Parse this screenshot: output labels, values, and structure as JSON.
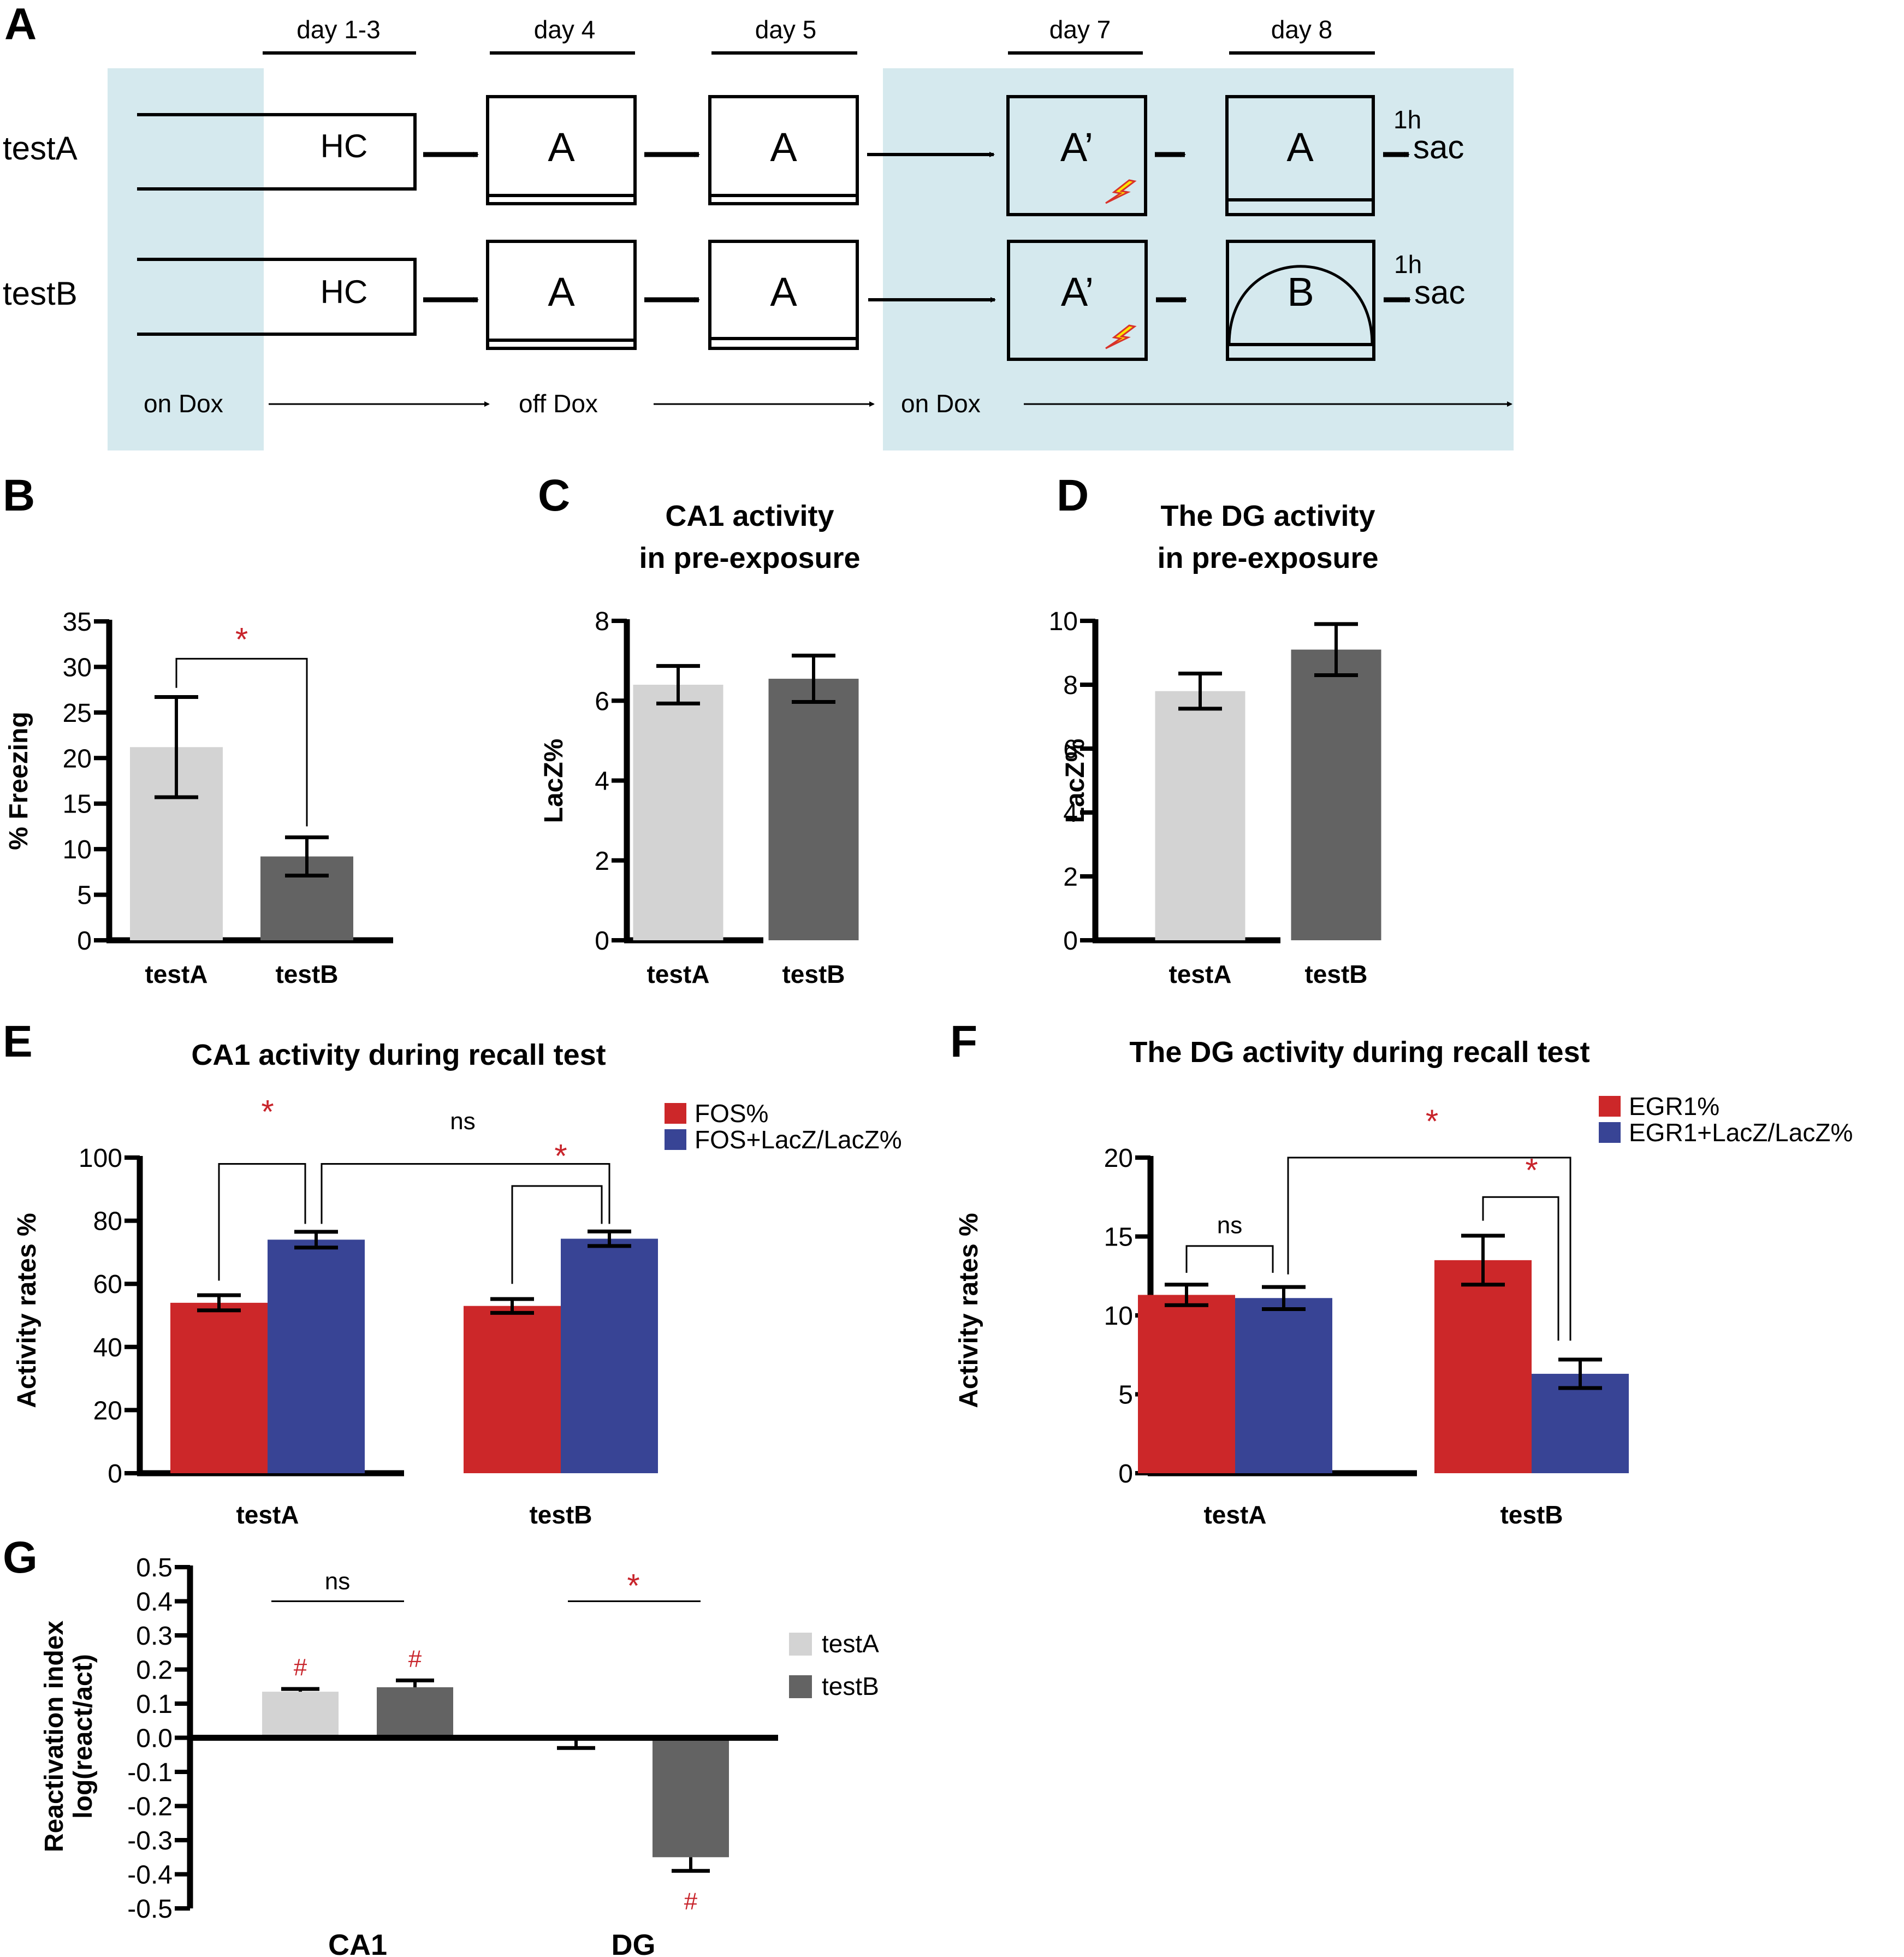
{
  "colors": {
    "dox_bg": "#d5e9ee",
    "testA_gray": "#d3d3d3",
    "testB_gray": "#636363",
    "red": "#cc2729",
    "blue": "#384495",
    "sig_red": "#c8242b",
    "shock_yellow": "#ffe600",
    "shock_outline": "#d8322a"
  },
  "panel_a": {
    "letter": "A",
    "days": [
      "day 1-3",
      "day 4",
      "day 5",
      "day 7",
      "day 8"
    ],
    "rows": [
      {
        "label": "testA",
        "steps": [
          "HC",
          "A",
          "A",
          "A’",
          "A"
        ],
        "post_label": "1h",
        "end_label": "sac"
      },
      {
        "label": "testB",
        "steps": [
          "HC",
          "A",
          "A",
          "A’",
          "B"
        ],
        "post_label": "1h",
        "end_label": "sac"
      }
    ],
    "dox": [
      "on Dox",
      "off Dox",
      "on Dox"
    ],
    "icons": [
      "arrow-right-icon",
      "lightning-shock-icon",
      "arena-dome-icon"
    ]
  },
  "chart_data": [
    {
      "panel": "B",
      "type": "bar",
      "title": "",
      "xlabel": "",
      "ylabel": "% Freezing",
      "ylim": [
        0,
        35
      ],
      "yticks": [
        "0",
        "5",
        "10",
        "15",
        "20",
        "25",
        "30",
        "35"
      ],
      "yticks_values": [
        0,
        5,
        10,
        15,
        20,
        25,
        30,
        35
      ],
      "categories": [
        "testA",
        "testB"
      ],
      "series": [
        {
          "name": "freezing",
          "values": [
            21.2,
            9.2
          ],
          "errors": [
            5.5,
            2.1
          ],
          "colors": [
            "#d3d3d3",
            "#636363"
          ]
        }
      ],
      "significance": [
        {
          "from": "testA",
          "to": "testB",
          "label": "*"
        }
      ],
      "grid": false,
      "legend": "none"
    },
    {
      "panel": "C",
      "type": "bar",
      "title": "CA1 activity\nin pre-exposure",
      "title_lines": [
        "CA1 activity",
        "in pre-exposure"
      ],
      "xlabel": "",
      "ylabel": "LacZ%",
      "ylim": [
        0,
        8
      ],
      "yticks": [
        "0",
        "2",
        "4",
        "6",
        "8"
      ],
      "yticks_values": [
        0,
        2,
        4,
        6,
        8
      ],
      "categories": [
        "testA",
        "testB"
      ],
      "series": [
        {
          "name": "LacZ%",
          "values": [
            6.4,
            6.55
          ],
          "errors": [
            0.47,
            0.58
          ],
          "colors": [
            "#d3d3d3",
            "#636363"
          ]
        }
      ],
      "grid": false,
      "legend": "none"
    },
    {
      "panel": "D",
      "type": "bar",
      "title": "The DG activity\nin pre-exposure",
      "title_lines": [
        "The DG activity",
        "in pre-exposure"
      ],
      "xlabel": "",
      "ylabel": "LacZ%",
      "ylim": [
        0,
        10
      ],
      "yticks": [
        "0",
        "2",
        "4",
        "6",
        "8",
        "10"
      ],
      "yticks_values": [
        0,
        2,
        4,
        6,
        8,
        10
      ],
      "categories": [
        "testA",
        "testB"
      ],
      "series": [
        {
          "name": "LacZ%",
          "values": [
            7.8,
            9.1
          ],
          "errors": [
            0.55,
            0.8
          ],
          "colors": [
            "#d3d3d3",
            "#636363"
          ]
        }
      ],
      "grid": false,
      "legend": "none"
    },
    {
      "panel": "E",
      "type": "bar",
      "title": "CA1 activity during recall test",
      "xlabel": "",
      "ylabel": "Activity rates %",
      "ylim": [
        0,
        100
      ],
      "yticks": [
        "0",
        "20",
        "40",
        "60",
        "80",
        "100"
      ],
      "yticks_values": [
        0,
        20,
        40,
        60,
        80,
        100
      ],
      "categories": [
        "testA",
        "testB"
      ],
      "series": [
        {
          "name": "FOS%",
          "values": [
            54.0,
            53.0
          ],
          "errors": [
            2.4,
            2.2
          ],
          "color": "#cc2729"
        },
        {
          "name": "FOS+LacZ/LacZ%",
          "values": [
            74.0,
            74.3
          ],
          "errors": [
            2.5,
            2.3
          ],
          "color": "#384495"
        }
      ],
      "significance": [
        {
          "label": "*",
          "between": "testA FOS% vs testA FOS+LacZ/LacZ%"
        },
        {
          "label": "ns",
          "between": "testA FOS+LacZ/LacZ% vs testB FOS+LacZ/LacZ%"
        },
        {
          "label": "*",
          "between": "testB FOS% vs testB FOS+LacZ/LacZ%"
        }
      ],
      "grid": false,
      "legend": "top-right"
    },
    {
      "panel": "F",
      "type": "bar",
      "title": "The DG activity during recall test",
      "xlabel": "",
      "ylabel": "Activity rates %",
      "ylim": [
        0,
        20
      ],
      "yticks": [
        "0",
        "5",
        "10",
        "15",
        "20"
      ],
      "yticks_values": [
        0,
        5,
        10,
        15,
        20
      ],
      "categories": [
        "testA",
        "testB"
      ],
      "series": [
        {
          "name": "EGR1%",
          "values": [
            11.3,
            13.5
          ],
          "errors": [
            0.65,
            1.55
          ],
          "color": "#cc2729"
        },
        {
          "name": "EGR1+LacZ/LacZ%",
          "values": [
            11.1,
            6.3
          ],
          "errors": [
            0.7,
            0.9
          ],
          "color": "#384495"
        }
      ],
      "significance": [
        {
          "label": "ns",
          "between": "testA EGR1% vs testA EGR1+LacZ/LacZ%"
        },
        {
          "label": "*",
          "between": "testA EGR1+LacZ/LacZ% vs testB EGR1+LacZ/LacZ%"
        },
        {
          "label": "*",
          "between": "testB EGR1% vs testB EGR1+LacZ/LacZ%"
        }
      ],
      "grid": false,
      "legend": "top-right"
    },
    {
      "panel": "G",
      "type": "bar",
      "title": "",
      "xlabel": "",
      "ylabel": "Reactivation index\nlog(react/act)",
      "ylabel_lines": [
        "Reactivation index",
        "log(react/act)"
      ],
      "ylim": [
        -0.5,
        0.5
      ],
      "yticks": [
        "-0.5",
        "-0.4",
        "-0.3",
        "-0.2",
        "-0.1",
        "0.0",
        "0.1",
        "0.2",
        "0.3",
        "0.4",
        "0.5"
      ],
      "yticks_values": [
        -0.5,
        -0.4,
        -0.3,
        -0.2,
        -0.1,
        0.0,
        0.1,
        0.2,
        0.3,
        0.4,
        0.5
      ],
      "categories": [
        "CA1",
        "DG"
      ],
      "series": [
        {
          "name": "testA",
          "values": [
            0.135,
            -0.005
          ],
          "errors": [
            0.008,
            0.025
          ],
          "color": "#d3d3d3",
          "markers": [
            "#",
            ""
          ]
        },
        {
          "name": "testB",
          "values": [
            0.148,
            -0.35
          ],
          "errors": [
            0.02,
            0.04
          ],
          "color": "#636363",
          "markers": [
            "#",
            "#"
          ]
        }
      ],
      "significance": [
        {
          "label": "ns",
          "between": "CA1 testA vs testB"
        },
        {
          "label": "*",
          "between": "DG testA vs testB"
        }
      ],
      "grid": false,
      "legend": "right"
    }
  ]
}
